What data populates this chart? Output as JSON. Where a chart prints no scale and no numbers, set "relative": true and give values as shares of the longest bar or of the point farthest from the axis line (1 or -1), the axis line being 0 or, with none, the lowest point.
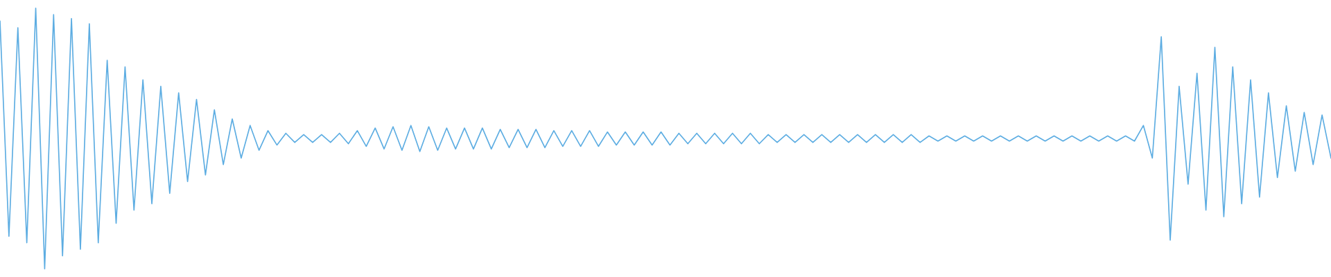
{
  "chart_data": {
    "type": "line",
    "relative": true,
    "categories": [
      null,
      null,
      null,
      null,
      null,
      null,
      null,
      null,
      null,
      null,
      null,
      null,
      null,
      null,
      null,
      null,
      null,
      null,
      null,
      null,
      null,
      null,
      null,
      null,
      null,
      null,
      null,
      null,
      null,
      null,
      null,
      null,
      null,
      null,
      null,
      null,
      null,
      null,
      null,
      null,
      null,
      null,
      null,
      null,
      null,
      null,
      null,
      null,
      null,
      null,
      null,
      null,
      null,
      null,
      null,
      null,
      null,
      null,
      null,
      null,
      null,
      null,
      null,
      null,
      null,
      null,
      null,
      null,
      null,
      null,
      null,
      null,
      null,
      null,
      null,
      null,
      null,
      null,
      null,
      null,
      null,
      null,
      null,
      null,
      null,
      null,
      null,
      null,
      null,
      null,
      null,
      null,
      null,
      null,
      null,
      null,
      null,
      null,
      null,
      null,
      null,
      null,
      null,
      null,
      null,
      null,
      null,
      null,
      null,
      null,
      null,
      null,
      null,
      null,
      null,
      null,
      null,
      null,
      null,
      null,
      null,
      null,
      null,
      null,
      null,
      null,
      null,
      null,
      null,
      null,
      null,
      null,
      null,
      null,
      null,
      null,
      null,
      null,
      null,
      null,
      null,
      null,
      null,
      null,
      null,
      null,
      null,
      null,
      null,
      null
    ],
    "series": [
      {
        "color": "#5dade2",
        "values": [
          0.95,
          0.125,
          0.925,
          0.1,
          1.0,
          0.0,
          0.975,
          0.05,
          0.96,
          0.075,
          0.94,
          0.1,
          0.8,
          0.175,
          0.775,
          0.225,
          0.725,
          0.25,
          0.7,
          0.29,
          0.675,
          0.335,
          0.65,
          0.36,
          0.61,
          0.4,
          0.575,
          0.425,
          0.55,
          0.455,
          0.53,
          0.475,
          0.52,
          0.485,
          0.515,
          0.485,
          0.515,
          0.485,
          0.52,
          0.48,
          0.53,
          0.47,
          0.54,
          0.46,
          0.545,
          0.455,
          0.55,
          0.45,
          0.545,
          0.455,
          0.54,
          0.46,
          0.54,
          0.46,
          0.54,
          0.46,
          0.535,
          0.465,
          0.535,
          0.465,
          0.535,
          0.465,
          0.53,
          0.47,
          0.53,
          0.47,
          0.53,
          0.47,
          0.525,
          0.475,
          0.525,
          0.475,
          0.525,
          0.475,
          0.525,
          0.475,
          0.52,
          0.48,
          0.52,
          0.48,
          0.52,
          0.48,
          0.52,
          0.48,
          0.52,
          0.48,
          0.515,
          0.485,
          0.515,
          0.485,
          0.515,
          0.485,
          0.515,
          0.485,
          0.515,
          0.485,
          0.515,
          0.485,
          0.515,
          0.485,
          0.515,
          0.485,
          0.515,
          0.485,
          0.51,
          0.49,
          0.51,
          0.49,
          0.51,
          0.49,
          0.51,
          0.49,
          0.51,
          0.49,
          0.51,
          0.49,
          0.51,
          0.49,
          0.51,
          0.49,
          0.51,
          0.49,
          0.51,
          0.49,
          0.51,
          0.49,
          0.51,
          0.49,
          0.55,
          0.425,
          0.89,
          0.11,
          0.7,
          0.325,
          0.75,
          0.225,
          0.85,
          0.2,
          0.775,
          0.25,
          0.725,
          0.275,
          0.675,
          0.35,
          0.625,
          0.375,
          0.6,
          0.4,
          0.59,
          0.425
        ]
      }
    ]
  }
}
